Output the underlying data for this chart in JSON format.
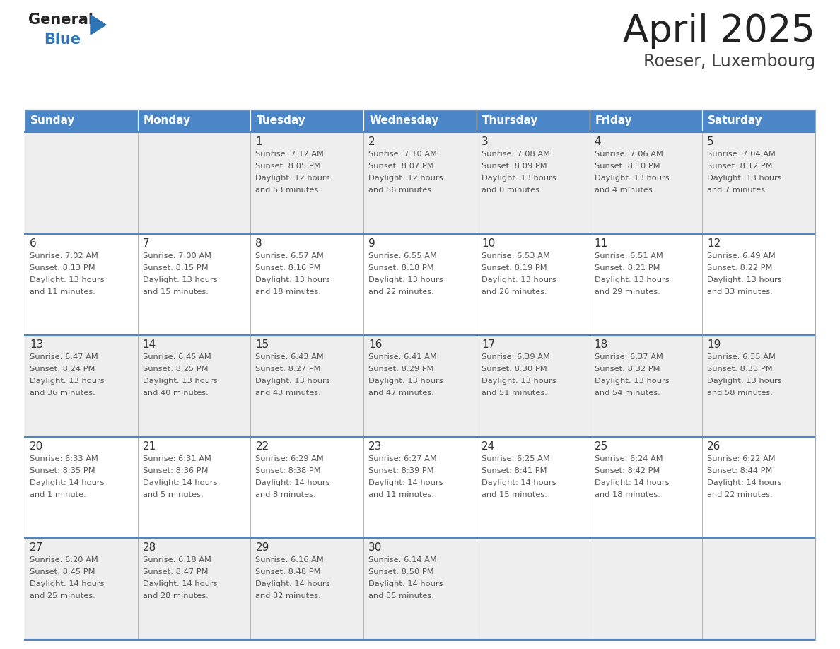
{
  "title": "April 2025",
  "subtitle": "Roeser, Luxembourg",
  "days_of_week": [
    "Sunday",
    "Monday",
    "Tuesday",
    "Wednesday",
    "Thursday",
    "Friday",
    "Saturday"
  ],
  "header_bg": "#4a86c8",
  "header_text": "#ffffff",
  "row_bg": [
    "#eeeeee",
    "#ffffff"
  ],
  "cell_border_color": "#aaaaaa",
  "week_divider_color": "#4a86c8",
  "title_color": "#222222",
  "subtitle_color": "#444444",
  "day_number_color": "#333333",
  "content_color": "#555555",
  "logo_general_color": "#222222",
  "logo_blue_color": "#2e75b6",
  "weeks": [
    [
      {
        "day": "",
        "lines": []
      },
      {
        "day": "",
        "lines": []
      },
      {
        "day": "1",
        "lines": [
          "Sunrise: 7:12 AM",
          "Sunset: 8:05 PM",
          "Daylight: 12 hours",
          "and 53 minutes."
        ]
      },
      {
        "day": "2",
        "lines": [
          "Sunrise: 7:10 AM",
          "Sunset: 8:07 PM",
          "Daylight: 12 hours",
          "and 56 minutes."
        ]
      },
      {
        "day": "3",
        "lines": [
          "Sunrise: 7:08 AM",
          "Sunset: 8:09 PM",
          "Daylight: 13 hours",
          "and 0 minutes."
        ]
      },
      {
        "day": "4",
        "lines": [
          "Sunrise: 7:06 AM",
          "Sunset: 8:10 PM",
          "Daylight: 13 hours",
          "and 4 minutes."
        ]
      },
      {
        "day": "5",
        "lines": [
          "Sunrise: 7:04 AM",
          "Sunset: 8:12 PM",
          "Daylight: 13 hours",
          "and 7 minutes."
        ]
      }
    ],
    [
      {
        "day": "6",
        "lines": [
          "Sunrise: 7:02 AM",
          "Sunset: 8:13 PM",
          "Daylight: 13 hours",
          "and 11 minutes."
        ]
      },
      {
        "day": "7",
        "lines": [
          "Sunrise: 7:00 AM",
          "Sunset: 8:15 PM",
          "Daylight: 13 hours",
          "and 15 minutes."
        ]
      },
      {
        "day": "8",
        "lines": [
          "Sunrise: 6:57 AM",
          "Sunset: 8:16 PM",
          "Daylight: 13 hours",
          "and 18 minutes."
        ]
      },
      {
        "day": "9",
        "lines": [
          "Sunrise: 6:55 AM",
          "Sunset: 8:18 PM",
          "Daylight: 13 hours",
          "and 22 minutes."
        ]
      },
      {
        "day": "10",
        "lines": [
          "Sunrise: 6:53 AM",
          "Sunset: 8:19 PM",
          "Daylight: 13 hours",
          "and 26 minutes."
        ]
      },
      {
        "day": "11",
        "lines": [
          "Sunrise: 6:51 AM",
          "Sunset: 8:21 PM",
          "Daylight: 13 hours",
          "and 29 minutes."
        ]
      },
      {
        "day": "12",
        "lines": [
          "Sunrise: 6:49 AM",
          "Sunset: 8:22 PM",
          "Daylight: 13 hours",
          "and 33 minutes."
        ]
      }
    ],
    [
      {
        "day": "13",
        "lines": [
          "Sunrise: 6:47 AM",
          "Sunset: 8:24 PM",
          "Daylight: 13 hours",
          "and 36 minutes."
        ]
      },
      {
        "day": "14",
        "lines": [
          "Sunrise: 6:45 AM",
          "Sunset: 8:25 PM",
          "Daylight: 13 hours",
          "and 40 minutes."
        ]
      },
      {
        "day": "15",
        "lines": [
          "Sunrise: 6:43 AM",
          "Sunset: 8:27 PM",
          "Daylight: 13 hours",
          "and 43 minutes."
        ]
      },
      {
        "day": "16",
        "lines": [
          "Sunrise: 6:41 AM",
          "Sunset: 8:29 PM",
          "Daylight: 13 hours",
          "and 47 minutes."
        ]
      },
      {
        "day": "17",
        "lines": [
          "Sunrise: 6:39 AM",
          "Sunset: 8:30 PM",
          "Daylight: 13 hours",
          "and 51 minutes."
        ]
      },
      {
        "day": "18",
        "lines": [
          "Sunrise: 6:37 AM",
          "Sunset: 8:32 PM",
          "Daylight: 13 hours",
          "and 54 minutes."
        ]
      },
      {
        "day": "19",
        "lines": [
          "Sunrise: 6:35 AM",
          "Sunset: 8:33 PM",
          "Daylight: 13 hours",
          "and 58 minutes."
        ]
      }
    ],
    [
      {
        "day": "20",
        "lines": [
          "Sunrise: 6:33 AM",
          "Sunset: 8:35 PM",
          "Daylight: 14 hours",
          "and 1 minute."
        ]
      },
      {
        "day": "21",
        "lines": [
          "Sunrise: 6:31 AM",
          "Sunset: 8:36 PM",
          "Daylight: 14 hours",
          "and 5 minutes."
        ]
      },
      {
        "day": "22",
        "lines": [
          "Sunrise: 6:29 AM",
          "Sunset: 8:38 PM",
          "Daylight: 14 hours",
          "and 8 minutes."
        ]
      },
      {
        "day": "23",
        "lines": [
          "Sunrise: 6:27 AM",
          "Sunset: 8:39 PM",
          "Daylight: 14 hours",
          "and 11 minutes."
        ]
      },
      {
        "day": "24",
        "lines": [
          "Sunrise: 6:25 AM",
          "Sunset: 8:41 PM",
          "Daylight: 14 hours",
          "and 15 minutes."
        ]
      },
      {
        "day": "25",
        "lines": [
          "Sunrise: 6:24 AM",
          "Sunset: 8:42 PM",
          "Daylight: 14 hours",
          "and 18 minutes."
        ]
      },
      {
        "day": "26",
        "lines": [
          "Sunrise: 6:22 AM",
          "Sunset: 8:44 PM",
          "Daylight: 14 hours",
          "and 22 minutes."
        ]
      }
    ],
    [
      {
        "day": "27",
        "lines": [
          "Sunrise: 6:20 AM",
          "Sunset: 8:45 PM",
          "Daylight: 14 hours",
          "and 25 minutes."
        ]
      },
      {
        "day": "28",
        "lines": [
          "Sunrise: 6:18 AM",
          "Sunset: 8:47 PM",
          "Daylight: 14 hours",
          "and 28 minutes."
        ]
      },
      {
        "day": "29",
        "lines": [
          "Sunrise: 6:16 AM",
          "Sunset: 8:48 PM",
          "Daylight: 14 hours",
          "and 32 minutes."
        ]
      },
      {
        "day": "30",
        "lines": [
          "Sunrise: 6:14 AM",
          "Sunset: 8:50 PM",
          "Daylight: 14 hours",
          "and 35 minutes."
        ]
      },
      {
        "day": "",
        "lines": []
      },
      {
        "day": "",
        "lines": []
      },
      {
        "day": "",
        "lines": []
      }
    ]
  ]
}
